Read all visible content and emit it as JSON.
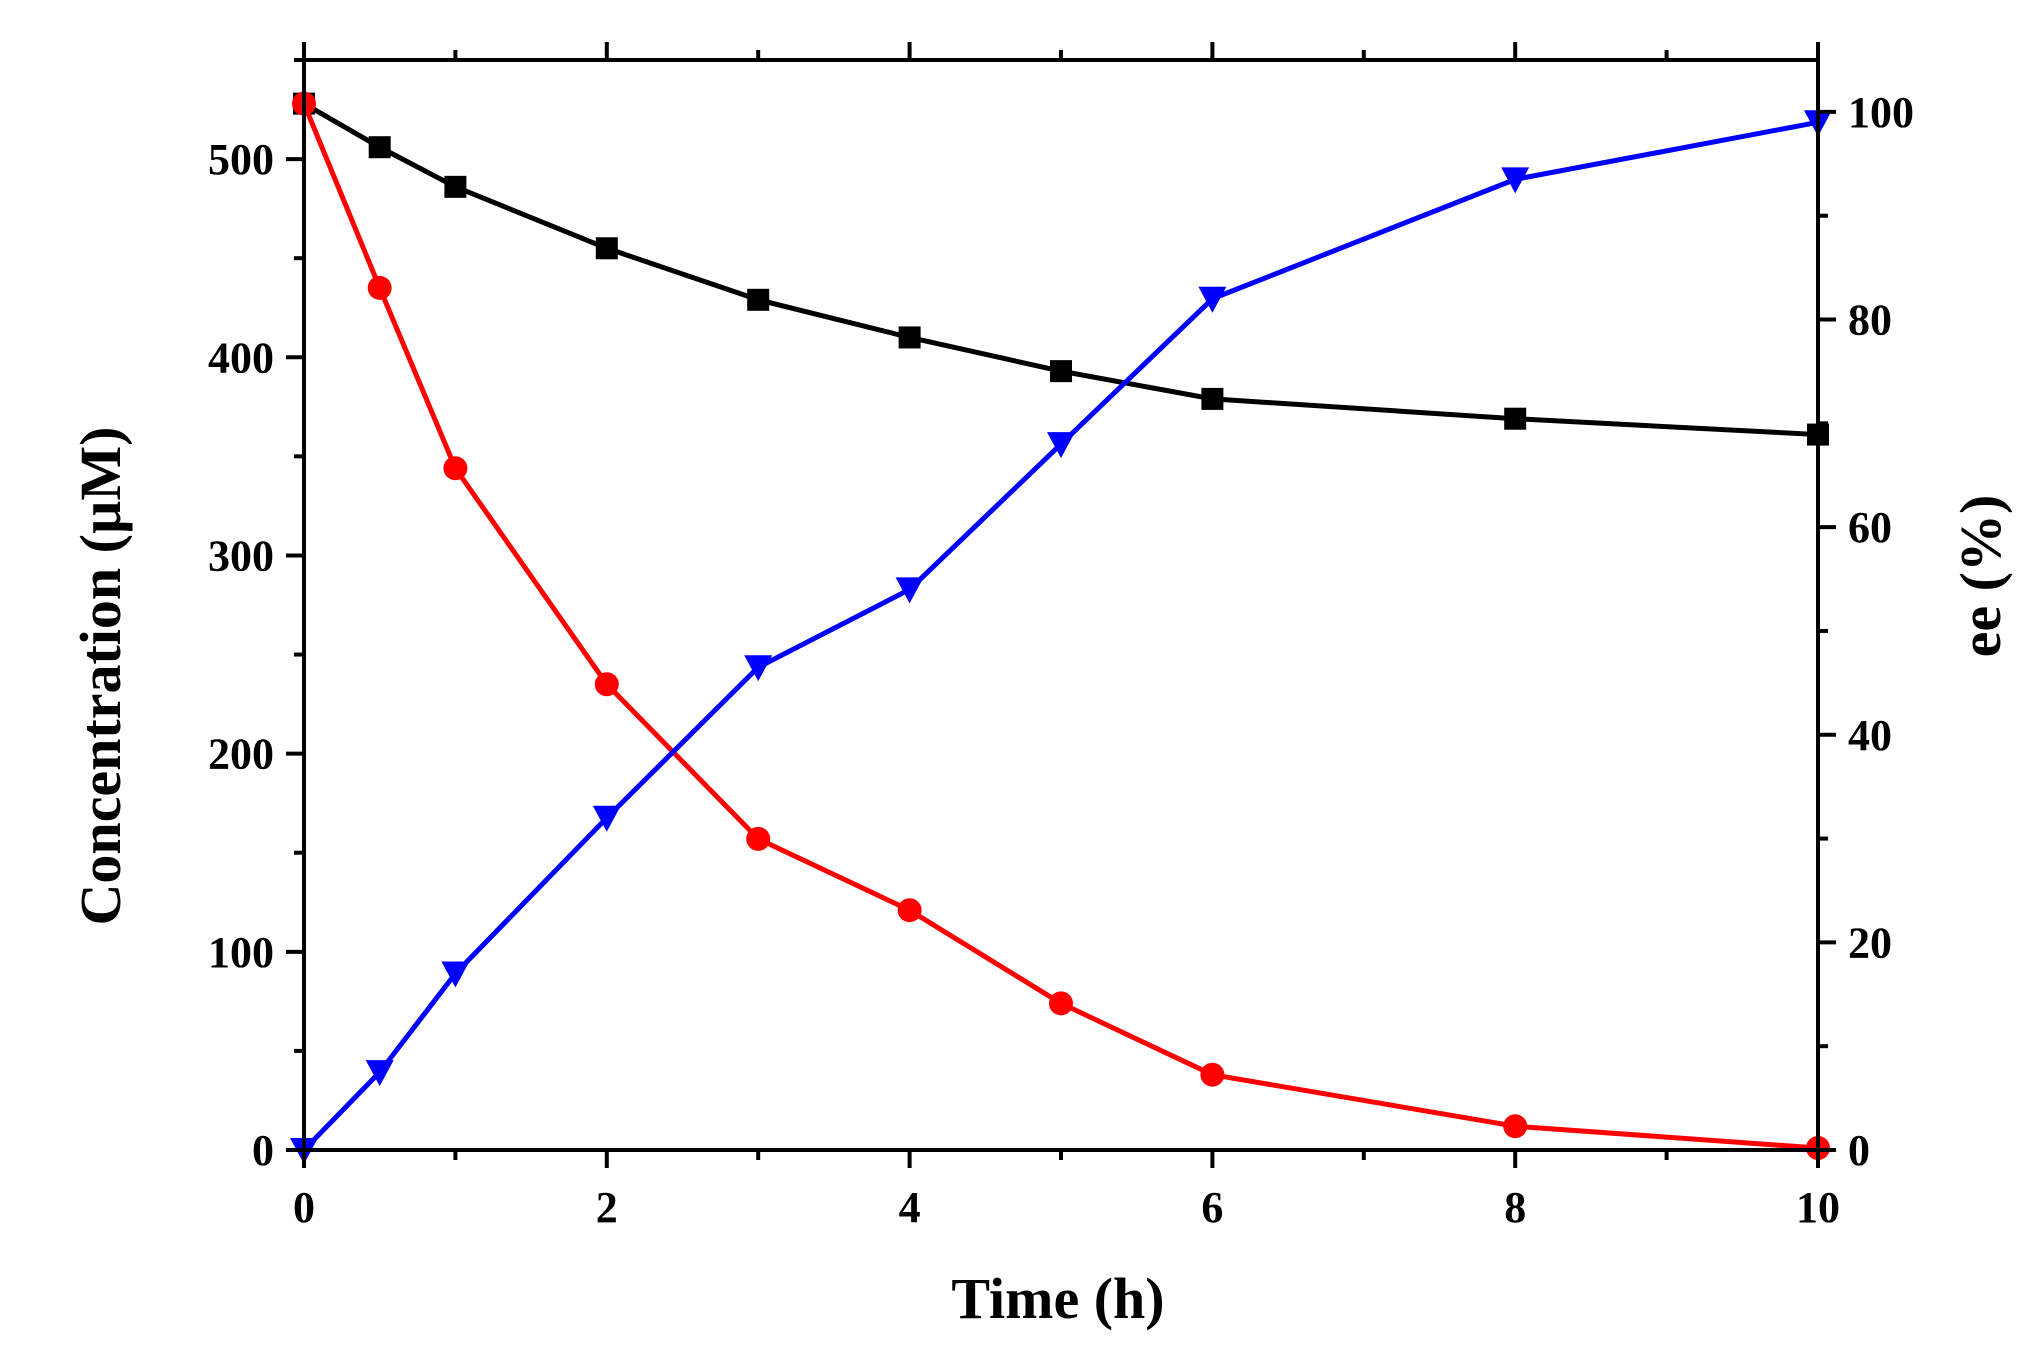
{
  "chart_data": {
    "type": "line",
    "title": "",
    "xlabel": "Time (h)",
    "ylabel_left": "Concentration (µM)",
    "ylabel_right": "ee (%)",
    "xlim": [
      0,
      10
    ],
    "ylim_left": [
      0,
      550
    ],
    "ylim_right": [
      0,
      105
    ],
    "x_ticks": [
      0,
      2,
      4,
      6,
      8,
      10
    ],
    "x_tick_labels": [
      "0",
      "2",
      "4",
      "6",
      "8",
      "10"
    ],
    "y_left_ticks": [
      0,
      100,
      200,
      300,
      400,
      500
    ],
    "y_left_tick_labels": [
      "0",
      "100",
      "200",
      "300",
      "400",
      "500"
    ],
    "y_right_ticks": [
      0,
      20,
      40,
      60,
      80,
      100
    ],
    "y_right_tick_labels": [
      "0",
      "20",
      "40",
      "60",
      "80",
      "100"
    ],
    "grid": false,
    "legend": "none",
    "series": [
      {
        "name": "black-squares",
        "axis": "left",
        "marker": "square",
        "color": "#000000",
        "x": [
          0,
          0.5,
          1,
          2,
          3,
          4,
          5,
          6,
          8,
          10
        ],
        "values": [
          528,
          506,
          486,
          455,
          429,
          410,
          393,
          379,
          369,
          361
        ]
      },
      {
        "name": "red-circles",
        "axis": "left",
        "marker": "circle",
        "color": "#ff0000",
        "x": [
          0,
          0.5,
          1,
          2,
          3,
          4,
          5,
          6,
          8,
          10
        ],
        "values": [
          528,
          435,
          344,
          235,
          157,
          121,
          74,
          38,
          12,
          1
        ]
      },
      {
        "name": "blue-triangles",
        "axis": "right",
        "marker": "triangle-down",
        "color": "#0000ff",
        "x": [
          0,
          0.5,
          1,
          2,
          3,
          4,
          5,
          6,
          8,
          10
        ],
        "values": [
          0,
          7.5,
          17,
          32,
          46.5,
          54,
          68,
          82,
          93.5,
          99
        ]
      }
    ]
  }
}
